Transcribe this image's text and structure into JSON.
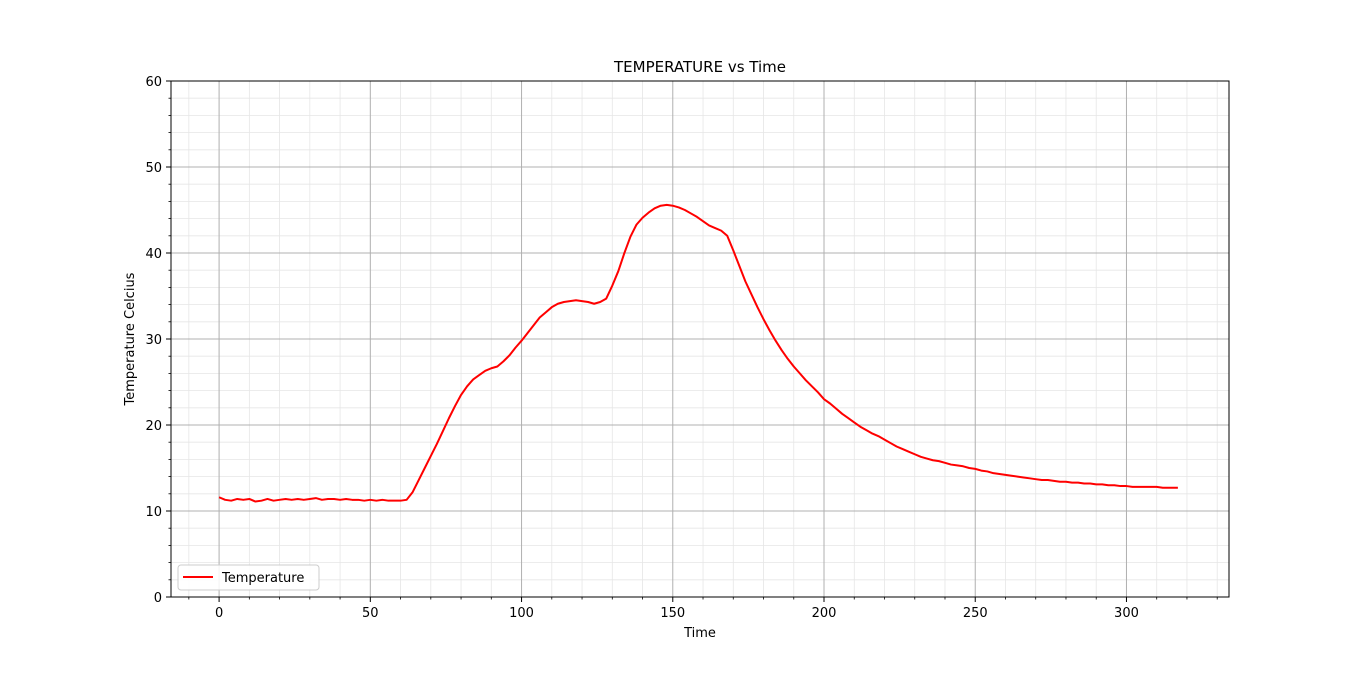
{
  "chart_data": {
    "type": "line",
    "title": "TEMPERATURE vs Time",
    "xlabel": "Time",
    "ylabel": "Temperature Celcius",
    "xlim": [
      -15.9,
      333.9
    ],
    "ylim": [
      0,
      60
    ],
    "x_ticks": [
      0,
      50,
      100,
      150,
      200,
      250,
      300
    ],
    "y_ticks": [
      0,
      10,
      20,
      30,
      40,
      50,
      60
    ],
    "x_minor_step": 10,
    "y_minor_step": 2,
    "grid": "major and minor",
    "legend": "lower-left",
    "series": [
      {
        "name": "Temperature",
        "color": "#ff0000",
        "x": [
          0,
          2,
          4,
          6,
          8,
          10,
          12,
          14,
          16,
          18,
          20,
          22,
          24,
          26,
          28,
          30,
          32,
          34,
          36,
          38,
          40,
          42,
          44,
          46,
          48,
          50,
          52,
          54,
          56,
          58,
          60,
          62,
          64,
          66,
          68,
          70,
          72,
          74,
          76,
          78,
          80,
          82,
          84,
          86,
          88,
          90,
          92,
          94,
          96,
          98,
          100,
          102,
          104,
          106,
          108,
          110,
          112,
          114,
          116,
          118,
          120,
          122,
          124,
          126,
          128,
          130,
          132,
          134,
          136,
          138,
          140,
          142,
          144,
          146,
          148,
          150,
          152,
          154,
          156,
          158,
          160,
          162,
          164,
          166,
          168,
          170,
          172,
          174,
          176,
          178,
          180,
          182,
          184,
          186,
          188,
          190,
          192,
          194,
          196,
          198,
          200,
          202,
          204,
          206,
          208,
          210,
          212,
          214,
          216,
          218,
          220,
          222,
          224,
          226,
          228,
          230,
          232,
          234,
          236,
          238,
          240,
          242,
          244,
          246,
          248,
          250,
          252,
          254,
          256,
          258,
          260,
          262,
          264,
          266,
          268,
          270,
          272,
          274,
          276,
          278,
          280,
          282,
          284,
          286,
          288,
          290,
          292,
          294,
          296,
          298,
          300,
          302,
          304,
          306,
          308,
          310,
          312,
          314,
          316,
          317
        ],
        "y": [
          11.6,
          11.3,
          11.2,
          11.4,
          11.3,
          11.4,
          11.1,
          11.2,
          11.4,
          11.2,
          11.3,
          11.4,
          11.3,
          11.4,
          11.3,
          11.4,
          11.5,
          11.3,
          11.4,
          11.4,
          11.3,
          11.4,
          11.3,
          11.3,
          11.2,
          11.3,
          11.2,
          11.3,
          11.2,
          11.2,
          11.2,
          11.3,
          12.2,
          13.6,
          15.0,
          16.4,
          17.8,
          19.3,
          20.8,
          22.2,
          23.5,
          24.5,
          25.3,
          25.8,
          26.3,
          26.6,
          26.8,
          27.4,
          28.1,
          29.0,
          29.8,
          30.7,
          31.6,
          32.5,
          33.1,
          33.7,
          34.1,
          34.3,
          34.4,
          34.5,
          34.4,
          34.3,
          34.1,
          34.3,
          34.7,
          36.2,
          37.9,
          40.0,
          41.9,
          43.3,
          44.1,
          44.7,
          45.2,
          45.5,
          45.6,
          45.5,
          45.3,
          45.0,
          44.6,
          44.2,
          43.7,
          43.2,
          42.9,
          42.6,
          42.0,
          40.3,
          38.5,
          36.7,
          35.2,
          33.7,
          32.3,
          31.0,
          29.8,
          28.7,
          27.7,
          26.8,
          26.0,
          25.2,
          24.5,
          23.8,
          23.0,
          22.5,
          21.9,
          21.3,
          20.8,
          20.3,
          19.8,
          19.4,
          19.0,
          18.7,
          18.3,
          17.9,
          17.5,
          17.2,
          16.9,
          16.6,
          16.3,
          16.1,
          15.9,
          15.8,
          15.6,
          15.4,
          15.3,
          15.2,
          15.0,
          14.9,
          14.7,
          14.6,
          14.4,
          14.3,
          14.2,
          14.1,
          14.0,
          13.9,
          13.8,
          13.7,
          13.6,
          13.6,
          13.5,
          13.4,
          13.4,
          13.3,
          13.3,
          13.2,
          13.2,
          13.1,
          13.1,
          13.0,
          13.0,
          12.9,
          12.9,
          12.8,
          12.8,
          12.8,
          12.8,
          12.8,
          12.7,
          12.7,
          12.7,
          12.7
        ]
      }
    ]
  }
}
